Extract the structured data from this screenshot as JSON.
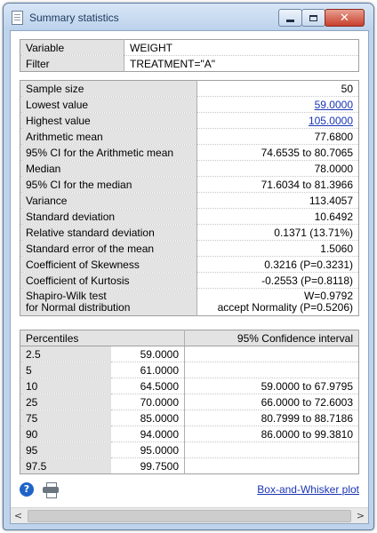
{
  "window": {
    "title": "Summary statistics"
  },
  "variable": {
    "label": "Variable",
    "value": "WEIGHT"
  },
  "filter": {
    "label": "Filter",
    "value": "TREATMENT=\"A\""
  },
  "stats": [
    {
      "label": "Sample size",
      "value": "50"
    },
    {
      "label": "Lowest value",
      "value": "59.0000"
    },
    {
      "label": "Highest value",
      "value": "105.0000"
    },
    {
      "label": "Arithmetic mean",
      "value": "77.6800"
    },
    {
      "label": "95% CI for the Arithmetic mean",
      "value": "74.6535 to 80.7065"
    },
    {
      "label": "Median",
      "value": "78.0000"
    },
    {
      "label": "95% CI for the median",
      "value": "71.6034 to 81.3966"
    },
    {
      "label": "Variance",
      "value": "113.4057"
    },
    {
      "label": "Standard deviation",
      "value": "10.6492"
    },
    {
      "label": "Relative standard deviation",
      "value": "0.1371 (13.71%)"
    },
    {
      "label": "Standard error of the mean",
      "value": "1.5060"
    },
    {
      "label": "Coefficient of Skewness",
      "value": "0.3216 (P=0.3231)"
    },
    {
      "label": "Coefficient of Kurtosis",
      "value": "-0.2553 (P=0.8118)"
    }
  ],
  "normality": {
    "label_line1": "Shapiro-Wilk test",
    "label_line2": "for Normal distribution",
    "value_line1": "W=0.9792",
    "value_line2": "accept Normality (P=0.5206)"
  },
  "percentiles": {
    "header_percentiles": "Percentiles",
    "header_ci": "95% Confidence interval",
    "rows": [
      {
        "p": "2.5",
        "value": "59.0000",
        "ci": ""
      },
      {
        "p": "5",
        "value": "61.0000",
        "ci": ""
      },
      {
        "p": "10",
        "value": "64.5000",
        "ci": "59.0000 to 67.9795"
      },
      {
        "p": "25",
        "value": "70.0000",
        "ci": "66.0000 to 72.6003"
      },
      {
        "p": "75",
        "value": "85.0000",
        "ci": "80.7999 to 88.7186"
      },
      {
        "p": "90",
        "value": "94.0000",
        "ci": "86.0000 to 99.3810"
      },
      {
        "p": "95",
        "value": "95.0000",
        "ci": ""
      },
      {
        "p": "97.5",
        "value": "99.7500",
        "ci": ""
      }
    ]
  },
  "bottom": {
    "help_icon": "help-icon",
    "print_icon": "printer-icon",
    "box_link": "Box-and-Whisker plot"
  },
  "scrollbar": {
    "left_arrow": "<",
    "right_arrow": ">"
  }
}
